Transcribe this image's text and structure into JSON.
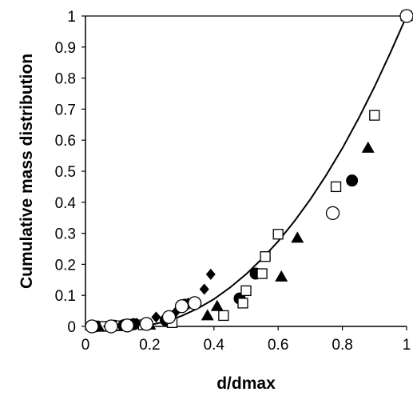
{
  "chart_data": {
    "type": "scatter",
    "title": "",
    "xlabel": "d/dmax",
    "ylabel": "Cumulative mass distribution",
    "xlim": [
      0,
      1
    ],
    "ylim": [
      0,
      1
    ],
    "x_ticks": [
      "0",
      "0.2",
      "0.4",
      "0.6",
      "0.8",
      "1"
    ],
    "y_ticks": [
      "0",
      "0.1",
      "0.2",
      "0.3",
      "0.4",
      "0.5",
      "0.6",
      "0.7",
      "0.8",
      "0.9",
      "1"
    ],
    "grid": false,
    "legend": "none",
    "fit_curve": {
      "x": [
        0.17,
        0.2,
        0.25,
        0.3,
        0.35,
        0.4,
        0.45,
        0.5,
        0.55,
        0.6,
        0.65,
        0.7,
        0.75,
        0.8,
        0.85,
        0.9,
        0.95,
        1.0
      ],
      "y": [
        0.0,
        0.004,
        0.016,
        0.034,
        0.058,
        0.088,
        0.125,
        0.168,
        0.218,
        0.274,
        0.338,
        0.409,
        0.488,
        0.574,
        0.669,
        0.772,
        0.883,
        1.0
      ]
    },
    "series": [
      {
        "marker": "filled-circle",
        "points": [
          [
            0.02,
            0.0
          ],
          [
            0.03,
            0.0
          ],
          [
            0.09,
            0.002
          ],
          [
            0.12,
            0.004
          ],
          [
            0.15,
            0.007
          ],
          [
            0.25,
            0.02
          ],
          [
            0.31,
            0.07
          ],
          [
            0.48,
            0.09
          ],
          [
            0.53,
            0.17
          ],
          [
            0.83,
            0.47
          ],
          [
            1.0,
            1.0
          ]
        ]
      },
      {
        "marker": "open-square",
        "points": [
          [
            0.03,
            0.0
          ],
          [
            0.06,
            0.0
          ],
          [
            0.1,
            0.002
          ],
          [
            0.13,
            0.003
          ],
          [
            0.18,
            0.005
          ],
          [
            0.27,
            0.012
          ],
          [
            0.43,
            0.035
          ],
          [
            0.49,
            0.075
          ],
          [
            0.5,
            0.115
          ],
          [
            0.55,
            0.17
          ],
          [
            0.56,
            0.225
          ],
          [
            0.6,
            0.297
          ],
          [
            0.78,
            0.45
          ],
          [
            0.9,
            0.68
          ],
          [
            1.0,
            1.0
          ]
        ]
      },
      {
        "marker": "filled-triangle",
        "points": [
          [
            0.04,
            0.0
          ],
          [
            0.08,
            0.0
          ],
          [
            0.12,
            0.002
          ],
          [
            0.2,
            0.005
          ],
          [
            0.38,
            0.035
          ],
          [
            0.41,
            0.065
          ],
          [
            0.61,
            0.16
          ],
          [
            0.66,
            0.285
          ],
          [
            0.88,
            0.575
          ],
          [
            1.0,
            1.0
          ]
        ]
      },
      {
        "marker": "filled-diamond",
        "points": [
          [
            0.03,
            0.0
          ],
          [
            0.07,
            0.0
          ],
          [
            0.11,
            0.003
          ],
          [
            0.16,
            0.01
          ],
          [
            0.22,
            0.03
          ],
          [
            0.28,
            0.045
          ],
          [
            0.32,
            0.075
          ],
          [
            0.37,
            0.12
          ],
          [
            0.39,
            0.168
          ],
          [
            1.0,
            1.0
          ]
        ]
      },
      {
        "marker": "open-circle",
        "points": [
          [
            0.02,
            0.0
          ],
          [
            0.08,
            0.0
          ],
          [
            0.13,
            0.003
          ],
          [
            0.19,
            0.008
          ],
          [
            0.26,
            0.03
          ],
          [
            0.3,
            0.065
          ],
          [
            0.34,
            0.075
          ],
          [
            0.77,
            0.365
          ],
          [
            1.0,
            1.0
          ]
        ]
      }
    ]
  }
}
